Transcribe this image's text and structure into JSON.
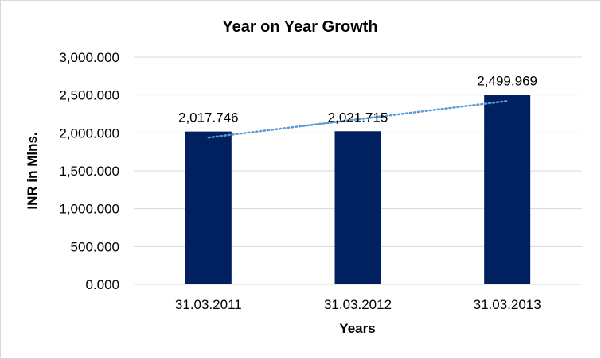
{
  "chart_data": {
    "type": "bar",
    "title": "Year on Year Growth",
    "xlabel": "Years",
    "ylabel": "INR in Mlns.",
    "categories": [
      "31.03.2011",
      "31.03.2012",
      "31.03.2013"
    ],
    "values": [
      2017.746,
      2021.715,
      2499.969
    ],
    "data_labels": [
      "2,017.746",
      "2,021.715",
      "2,499.969"
    ],
    "ylim": [
      0,
      3000
    ],
    "yticks": [
      0,
      500,
      1000,
      1500,
      2000,
      2500,
      3000
    ],
    "ytick_labels": [
      "0.000",
      "500.000",
      "1,000.000",
      "1,500.000",
      "2,000.000",
      "2,500.000",
      "3,000.000"
    ],
    "grid": true,
    "trendline": "linear",
    "colors": {
      "bar": "#002060",
      "trendline": "#5B9BD5",
      "grid": "#d9d9d9"
    }
  }
}
